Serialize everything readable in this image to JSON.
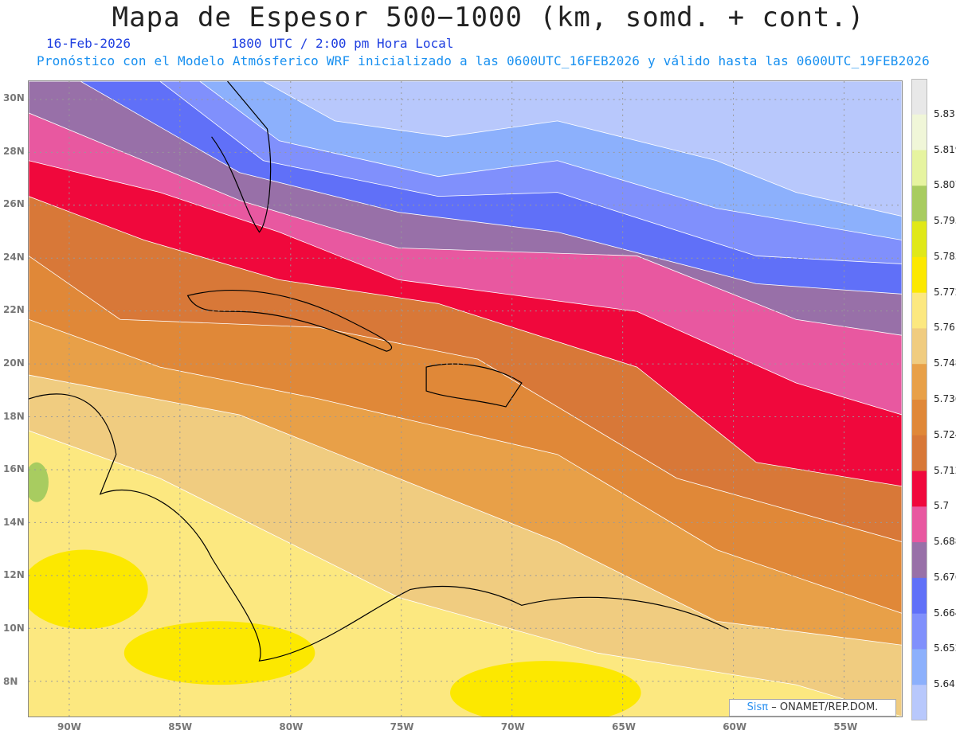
{
  "header": {
    "title": "Mapa de Espesor 500−1000 (km, somd. + cont.)",
    "date": "16-Feb-2026",
    "time": "1800 UTC / 2:00 pm Hora Local",
    "subtitle": "Pronóstico con el Modelo Atmósferico WRF inicializado a las 0600UTC_16FEB2026 y válido hasta las  0600UTC_19FEB2026"
  },
  "axes": {
    "lon_labels": [
      "90W",
      "85W",
      "80W",
      "75W",
      "70W",
      "65W",
      "60W",
      "55W"
    ],
    "lat_labels": [
      "30N",
      "28N",
      "26N",
      "24N",
      "22N",
      "20N",
      "18N",
      "16N",
      "14N",
      "12N",
      "10N",
      "8N"
    ]
  },
  "colorbar": {
    "levels": [
      "5.831",
      "5.819",
      "5.807",
      "5.795",
      "5.783",
      "5.772",
      "5.76",
      "5.748",
      "5.736",
      "5.724",
      "5.712",
      "5.7",
      "5.688",
      "5.676",
      "5.664",
      "5.652",
      "5.64"
    ],
    "colors_top_to_bottom": [
      "#e8e8e8",
      "#f0f6d8",
      "#e6f4a0",
      "#a8cc60",
      "#e0e818",
      "#fce800",
      "#fce880",
      "#f0cc80",
      "#e8a048",
      "#e08838",
      "#d87838",
      "#f0083c",
      "#e858a0",
      "#9870a8",
      "#6070f8",
      "#8090fc",
      "#8cb0fc",
      "#b8c8fc"
    ]
  },
  "credit": {
    "logo": "Sisπ",
    "text": "– ONAMET/REP.DOM."
  }
}
